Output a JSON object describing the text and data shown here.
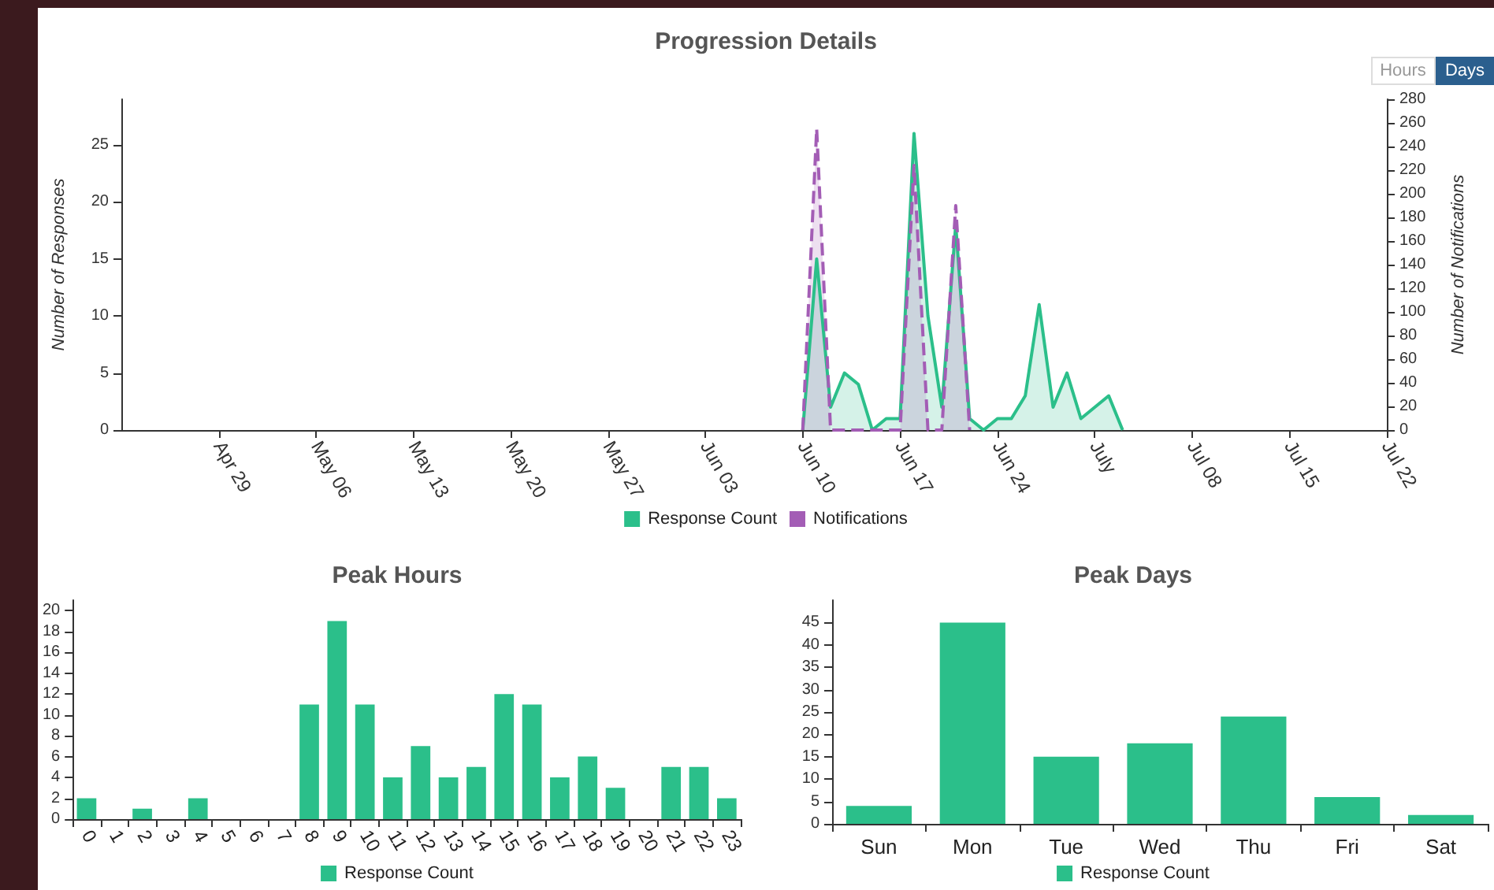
{
  "chart_data": [
    {
      "type": "area",
      "title": "Progression Details",
      "ylabel": "Number of Responses",
      "y2label": "Number of Notifications",
      "annotations": [
        "Hours",
        "Days"
      ],
      "xlim": [
        "--04-22",
        "--07-22"
      ],
      "xticks": [
        {
          "value": "--04-29",
          "label": "Apr 29"
        },
        {
          "value": "--05-06",
          "label": "May 06"
        },
        {
          "value": "--05-13",
          "label": "May 13"
        },
        {
          "value": "--05-20",
          "label": "May 20"
        },
        {
          "value": "--05-27",
          "label": "May 27"
        },
        {
          "value": "--06-03",
          "label": "Jun 03"
        },
        {
          "value": "--06-10",
          "label": "Jun 10"
        },
        {
          "value": "--06-17",
          "label": "Jun 17"
        },
        {
          "value": "--06-24",
          "label": "Jun 24"
        },
        {
          "value": "--07-01",
          "label": "July"
        },
        {
          "value": "--07-08",
          "label": "Jul 08"
        },
        {
          "value": "--07-15",
          "label": "Jul 15"
        },
        {
          "value": "--07-22",
          "label": "Jul 22"
        }
      ],
      "ylim": [
        0,
        29
      ],
      "yticks": [
        0,
        5,
        10,
        15,
        20,
        25
      ],
      "y2lim": [
        0,
        280
      ],
      "y2ticks": [
        0,
        20,
        40,
        60,
        80,
        100,
        120,
        140,
        160,
        180,
        200,
        220,
        240,
        260,
        280
      ],
      "grid": false,
      "legend": "bottom",
      "marker": "none",
      "series": [
        {
          "name": "Response Count",
          "color": "#2bbf8a",
          "line_style": "solid",
          "x": [
            "--06-10",
            "--06-11",
            "--06-12",
            "--06-13",
            "--06-14",
            "--06-15",
            "--06-16",
            "--06-17",
            "--06-18",
            "--06-19",
            "--06-20",
            "--06-21",
            "--06-22",
            "--06-23",
            "--06-24",
            "--06-25",
            "--06-26",
            "--06-27",
            "--06-28",
            "--06-29",
            "--06-30",
            "--07-01",
            "--07-02",
            "--07-03"
          ],
          "values": [
            0,
            15,
            2,
            5,
            4,
            0,
            1,
            1,
            26,
            10,
            2,
            18,
            1,
            0,
            1,
            1,
            3,
            11,
            2,
            5,
            1,
            2,
            3,
            0
          ]
        },
        {
          "name": "Notifications",
          "color": "#a35db5",
          "line_style": "dashed",
          "axis": "y2",
          "x": [
            "--06-10",
            "--06-11",
            "--06-12",
            "--06-13",
            "--06-14",
            "--06-15",
            "--06-16",
            "--06-17",
            "--06-18",
            "--06-19",
            "--06-20",
            "--06-21",
            "--06-22"
          ],
          "values": [
            0,
            255,
            0,
            0,
            0,
            0,
            0,
            0,
            224,
            0,
            0,
            190,
            0
          ]
        }
      ]
    },
    {
      "type": "bar",
      "title": "Peak Hours",
      "categories": [
        "0",
        "1",
        "2",
        "3",
        "4",
        "5",
        "6",
        "7",
        "8",
        "9",
        "10",
        "11",
        "12",
        "13",
        "14",
        "15",
        "16",
        "17",
        "18",
        "19",
        "20",
        "21",
        "22",
        "23"
      ],
      "ylim": [
        0,
        21
      ],
      "yticks": [
        0,
        2,
        4,
        6,
        8,
        10,
        12,
        14,
        16,
        18,
        20
      ],
      "grid": false,
      "legend": "bottom",
      "series": [
        {
          "name": "Response Count",
          "color": "#2bbf8a",
          "values": [
            2,
            0,
            1,
            0,
            2,
            0,
            0,
            0,
            11,
            19,
            11,
            4,
            7,
            4,
            5,
            12,
            11,
            4,
            6,
            3,
            0,
            5,
            5,
            2
          ]
        }
      ]
    },
    {
      "type": "bar",
      "title": "Peak Days",
      "categories": [
        "Sun",
        "Mon",
        "Tue",
        "Wed",
        "Thu",
        "Fri",
        "Sat"
      ],
      "ylim": [
        0,
        50
      ],
      "yticks": [
        0,
        5,
        10,
        15,
        20,
        25,
        30,
        35,
        40,
        45
      ],
      "grid": false,
      "legend": "bottom",
      "series": [
        {
          "name": "Response Count",
          "color": "#2bbf8a",
          "values": [
            4,
            45,
            15,
            18,
            24,
            6,
            2
          ]
        }
      ]
    }
  ]
}
